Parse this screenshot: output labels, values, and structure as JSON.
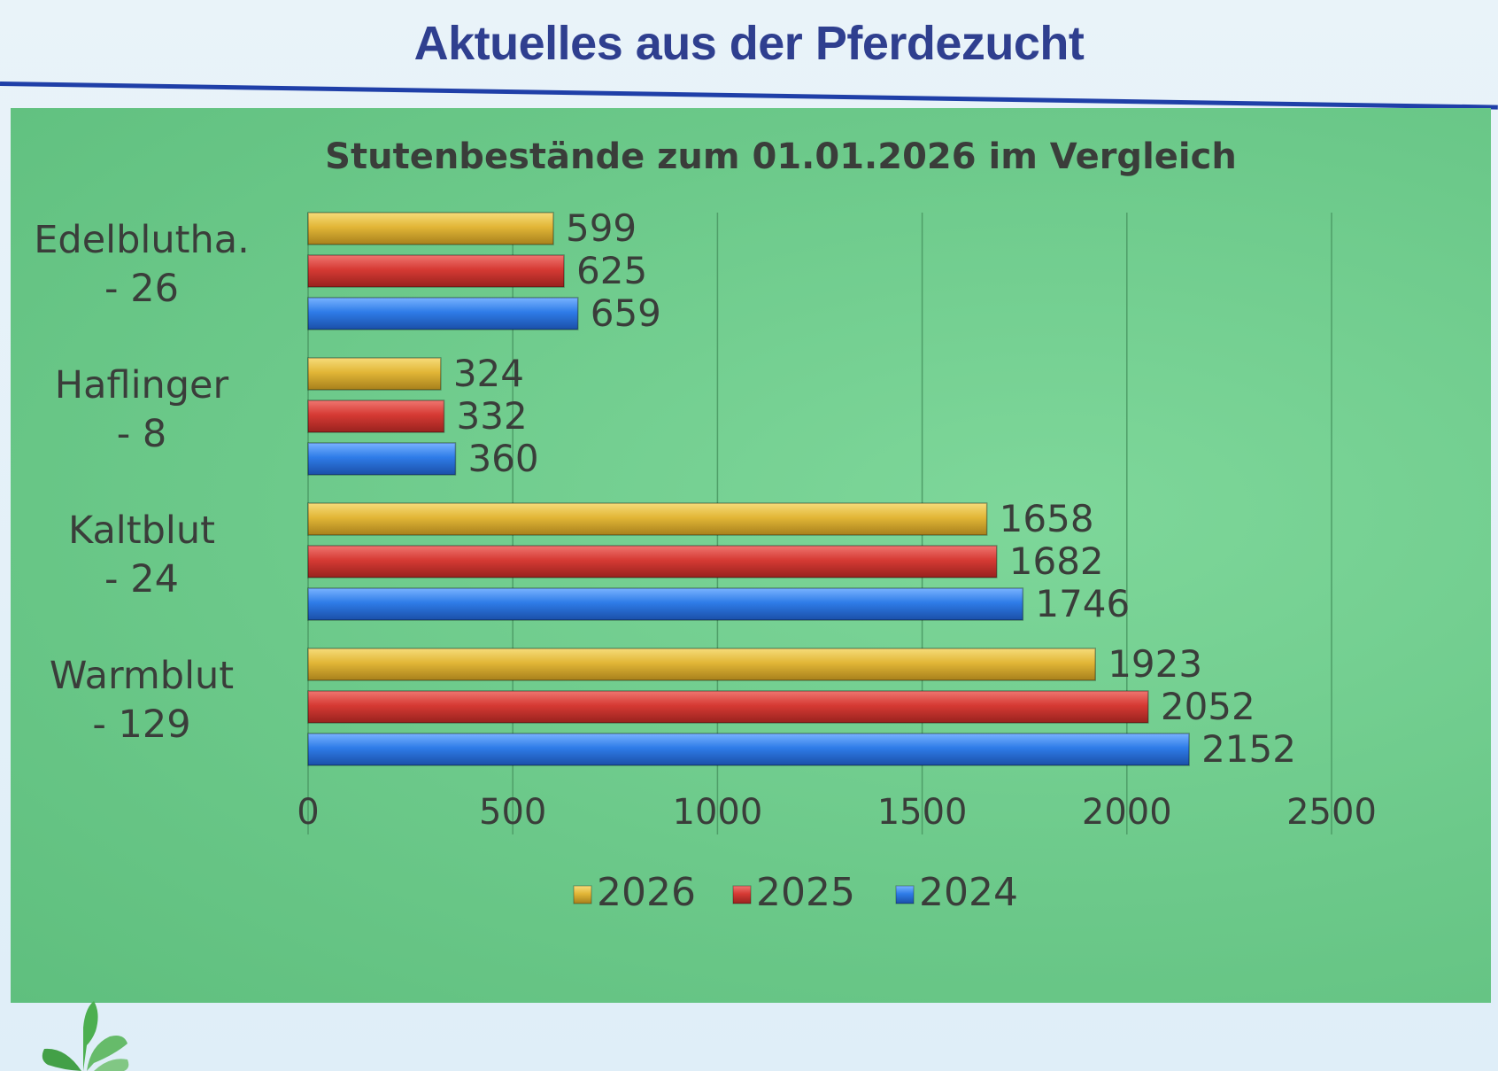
{
  "slide": {
    "title": "Aktuelles aus der Pferdezucht"
  },
  "colors": {
    "title": "#2f3f8f",
    "rule": "#1f3fa8",
    "panel": "#6cc98a",
    "series_2026": "#e2b637",
    "series_2025": "#d63a34",
    "series_2024": "#2f7ce8"
  },
  "chart_data": {
    "type": "bar",
    "orientation": "horizontal",
    "title": "Stutenbestände zum 01.01.2026 im Vergleich",
    "categories": [
      {
        "name": "Edelblutha.",
        "diff": "- 26"
      },
      {
        "name": "Haflinger",
        "diff": "- 8"
      },
      {
        "name": "Kaltblut",
        "diff": "- 24"
      },
      {
        "name": "Warmblut",
        "diff": "- 129"
      }
    ],
    "series": [
      {
        "name": "2026",
        "color": "#e2b637",
        "values": [
          599,
          324,
          1658,
          1923
        ]
      },
      {
        "name": "2025",
        "color": "#d63a34",
        "values": [
          625,
          332,
          1682,
          2052
        ]
      },
      {
        "name": "2024",
        "color": "#2f7ce8",
        "values": [
          659,
          360,
          1746,
          2152
        ]
      }
    ],
    "xticks": [
      "0",
      "500",
      "1000",
      "1500",
      "2000",
      "2500"
    ],
    "xlim": [
      0,
      2500
    ],
    "grid": "vertical",
    "legend": "bottom"
  }
}
